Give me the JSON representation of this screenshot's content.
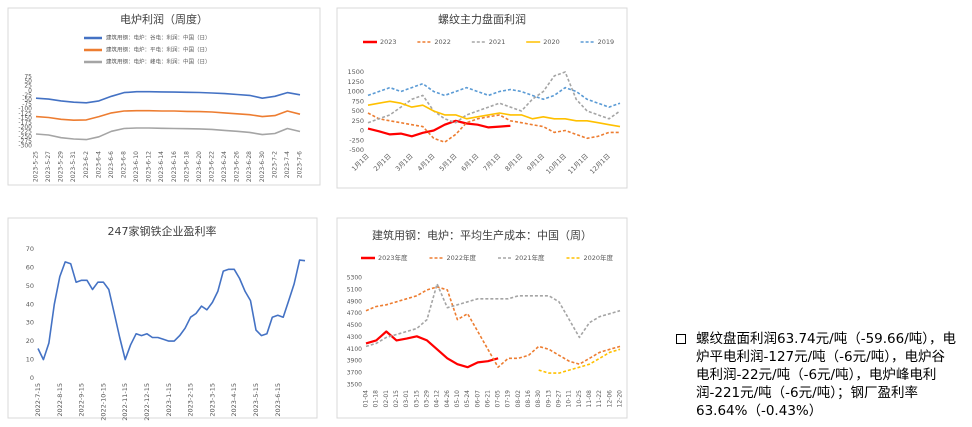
{
  "chart_data": [
    {
      "type": "line",
      "title": "电炉利润（周度）",
      "categories": [
        "2023-5-25",
        "2023-5-27",
        "2023-5-29",
        "2023-5-31",
        "2023-6-2",
        "2023-6-4",
        "2023-6-6",
        "2023-6-8",
        "2023-6-10",
        "2023-6-12",
        "2023-6-14",
        "2023-6-16",
        "2023-6-18",
        "2023-6-20",
        "2023-6-22",
        "2023-6-24",
        "2023-6-26",
        "2023-6-28",
        "2023-6-30",
        "2023-7-2",
        "2023-7-4",
        "2023-7-6"
      ],
      "series": [
        {
          "name": "建筑用钢：电炉：谷电：利润：中国（日）",
          "color": "#4472c4",
          "values": [
            -40,
            -45,
            -55,
            -62,
            -65,
            -55,
            -30,
            -10,
            -5,
            -5,
            -6,
            -7,
            -8,
            -9,
            -12,
            -15,
            -20,
            -25,
            -40,
            -30,
            -10,
            -22
          ]
        },
        {
          "name": "建筑用钢：电炉：平电：利润：中国（日）",
          "color": "#ed7d31",
          "values": [
            -140,
            -145,
            -155,
            -160,
            -158,
            -140,
            -120,
            -110,
            -108,
            -108,
            -110,
            -110,
            -112,
            -113,
            -115,
            -120,
            -125,
            -130,
            -140,
            -135,
            -110,
            -127
          ]
        },
        {
          "name": "建筑用钢：电炉：峰电：利润：中国（日）",
          "color": "#a5a5a5",
          "values": [
            -235,
            -240,
            -255,
            -262,
            -265,
            -250,
            -220,
            -205,
            -202,
            -202,
            -204,
            -205,
            -206,
            -207,
            -210,
            -215,
            -220,
            -226,
            -238,
            -232,
            -205,
            -221
          ]
        }
      ],
      "ylim": [
        -300,
        75
      ],
      "yticks": [
        75,
        50,
        25,
        0,
        -25,
        -50,
        -75,
        -100,
        -125,
        -150,
        -175,
        -200,
        -225,
        -250,
        -275,
        -300
      ],
      "grid": false,
      "legend": "top"
    },
    {
      "type": "line",
      "title": "螺纹主力盘面利润",
      "categories": [
        "1月1日",
        null,
        "2月1日",
        null,
        "3月1日",
        null,
        "4月1日",
        null,
        "5月1日",
        null,
        "6月1日",
        null,
        "7月1日",
        null,
        "8月1日",
        null,
        "9月1日",
        null,
        "10月1日",
        null,
        "11月1日",
        null,
        "12月1日",
        null
      ],
      "series": [
        {
          "name": "2023",
          "color": "#ff0000",
          "dashed": false,
          "values": [
            50,
            -20,
            -100,
            -80,
            -150,
            -60,
            0,
            150,
            250,
            180,
            150,
            80,
            100,
            120,
            null,
            null,
            null,
            null,
            null,
            null,
            null,
            null,
            null,
            null
          ]
        },
        {
          "name": "2022",
          "color": "#ed7d31",
          "dashed": true,
          "values": [
            450,
            300,
            250,
            200,
            150,
            100,
            -200,
            -300,
            -100,
            200,
            300,
            350,
            400,
            250,
            200,
            150,
            100,
            -50,
            0,
            -100,
            -200,
            -150,
            -50,
            -50
          ]
        },
        {
          "name": "2021",
          "color": "#a5a5a5",
          "dashed": true,
          "values": [
            200,
            300,
            400,
            600,
            800,
            900,
            500,
            300,
            200,
            400,
            500,
            600,
            700,
            600,
            500,
            800,
            1000,
            1400,
            1500,
            800,
            500,
            400,
            300,
            500
          ]
        },
        {
          "name": "2020",
          "color": "#ffc000",
          "dashed": false,
          "values": [
            650,
            700,
            750,
            700,
            600,
            650,
            500,
            400,
            400,
            300,
            350,
            400,
            450,
            400,
            400,
            300,
            350,
            300,
            300,
            250,
            250,
            200,
            150,
            100
          ]
        },
        {
          "name": "2019",
          "color": "#5b9bd5",
          "dashed": true,
          "values": [
            900,
            1000,
            1100,
            1000,
            1100,
            1200,
            1000,
            900,
            1000,
            1100,
            1000,
            900,
            1000,
            1050,
            1000,
            900,
            800,
            900,
            1100,
            1000,
            800,
            700,
            600,
            700
          ]
        }
      ],
      "ylim": [
        -500,
        1500
      ],
      "yticks": [
        1500,
        1250,
        1000,
        750,
        500,
        250,
        0,
        -250,
        -500
      ],
      "grid": false,
      "legend": "top"
    },
    {
      "type": "line",
      "title": "247家钢铁企业盈利率",
      "categories": [
        "2022-7-15",
        null,
        null,
        null,
        "2022-8-15",
        null,
        null,
        null,
        "2022-9-15",
        null,
        null,
        null,
        "2022-10-15",
        null,
        null,
        null,
        "2022-11-15",
        null,
        null,
        null,
        "2022-12-15",
        null,
        null,
        null,
        "2023-1-15",
        null,
        null,
        null,
        "2023-2-15",
        null,
        null,
        null,
        "2023-3-15",
        null,
        null,
        null,
        "2023-4-15",
        null,
        null,
        null,
        "2023-5-15",
        null,
        null,
        null,
        "2023-6-15",
        null,
        null,
        null,
        null,
        null
      ],
      "color": "#4472c4",
      "values": [
        16,
        10,
        19,
        40,
        55,
        63,
        62,
        52,
        53,
        53,
        48,
        52,
        52,
        48,
        35,
        22,
        10,
        18,
        24,
        23,
        24,
        22,
        22,
        21,
        20,
        20,
        23,
        27,
        33,
        35,
        39,
        37,
        41,
        47,
        58,
        59,
        59,
        54,
        47,
        42,
        26,
        23,
        24,
        33,
        34,
        33,
        42,
        51,
        64,
        63.64
      ],
      "ylim": [
        0,
        70
      ],
      "yticks": [
        70,
        60,
        50,
        40,
        30,
        20,
        10,
        0
      ],
      "grid": false
    },
    {
      "type": "line",
      "title": "建筑用钢：电炉：平均生产成本：中国（周）",
      "categories": [
        "01-04",
        "01-18",
        "02-01",
        "02-15",
        "03-01",
        "03-15",
        "03-29",
        "04-12",
        "04-26",
        "05-10",
        "05-24",
        "06-07",
        "06-21",
        "07-05",
        "07-19",
        "08-02",
        "08-16",
        "08-30",
        "09-13",
        "09-27",
        "10-11",
        "10-25",
        "11-08",
        "11-22",
        "12-06",
        "12-20"
      ],
      "series": [
        {
          "name": "2023年度",
          "color": "#ff0000",
          "dashed": false,
          "values": [
            4200,
            4250,
            4400,
            4250,
            4280,
            4320,
            4250,
            4100,
            3950,
            3850,
            3800,
            3880,
            3900,
            3950,
            null,
            null,
            null,
            null,
            null,
            null,
            null,
            null,
            null,
            null,
            null,
            null
          ]
        },
        {
          "name": "2022年度",
          "color": "#ed7d31",
          "dashed": true,
          "values": [
            4750,
            4820,
            4850,
            4900,
            4950,
            5000,
            5100,
            5150,
            5100,
            4600,
            4700,
            4400,
            4100,
            3800,
            3950,
            3950,
            4000,
            4150,
            4100,
            4000,
            3900,
            3850,
            3950,
            4050,
            4100,
            4150
          ]
        },
        {
          "name": "2021年度",
          "color": "#a5a5a5",
          "dashed": true,
          "values": [
            4150,
            4200,
            4300,
            4350,
            4400,
            4450,
            4600,
            5200,
            4800,
            4850,
            4900,
            4950,
            4950,
            4950,
            4950,
            5000,
            5000,
            5000,
            5000,
            4900,
            4600,
            4300,
            4550,
            4650,
            4700,
            4750
          ]
        },
        {
          "name": "2020年度",
          "color": "#ffc000",
          "dashed": true,
          "values": [
            null,
            null,
            null,
            null,
            null,
            null,
            null,
            null,
            null,
            null,
            null,
            null,
            null,
            null,
            null,
            null,
            null,
            3750,
            3700,
            3700,
            3750,
            3800,
            3850,
            3950,
            4050,
            4100
          ]
        }
      ],
      "ylim": [
        3500,
        5300
      ],
      "yticks": [
        5300,
        5100,
        4900,
        4700,
        4500,
        4300,
        4100,
        3900,
        3700,
        3500
      ],
      "grid": false,
      "legend": "top"
    }
  ],
  "note": "螺纹盘面利润63.74元/吨（-59.66/吨），电炉平电利润-127元/吨（-6元/吨），电炉谷电利润-22元/吨（-6元/吨），电炉峰电利润-221元/吨（-6元/吨）；钢厂盈利率63.64%（-0.43%）"
}
